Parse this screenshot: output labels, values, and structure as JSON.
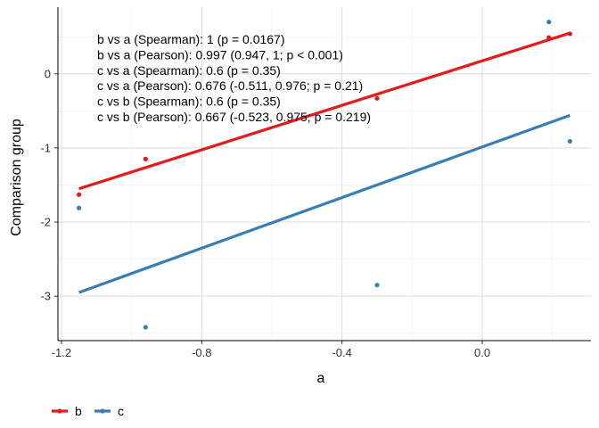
{
  "chart_data": {
    "type": "scatter",
    "xlabel": "a",
    "ylabel": "Comparison group",
    "xlim": [
      -1.21,
      0.31
    ],
    "ylim": [
      -3.6,
      0.9
    ],
    "xticks": [
      -1.2,
      -0.8,
      -0.4,
      0.0
    ],
    "xtick_labels": [
      "-1.2",
      "-0.8",
      "-0.4",
      "0.0"
    ],
    "yticks": [
      -3,
      -2,
      -1,
      0
    ],
    "ytick_labels": [
      "-3",
      "-2",
      "-1",
      "0"
    ],
    "grid": true,
    "legend_position": "bottom-left",
    "series": [
      {
        "name": "b",
        "color": "#e41a1c",
        "points": [
          {
            "x": -1.15,
            "y": -1.63
          },
          {
            "x": -0.96,
            "y": -1.15
          },
          {
            "x": -0.3,
            "y": -0.33
          },
          {
            "x": 0.19,
            "y": 0.49
          },
          {
            "x": 0.25,
            "y": 0.54
          }
        ],
        "fit": {
          "x": [
            -1.15,
            0.25
          ],
          "y": [
            -1.55,
            0.55
          ]
        }
      },
      {
        "name": "c",
        "color": "#377eb8",
        "points": [
          {
            "x": -1.15,
            "y": -1.81
          },
          {
            "x": -0.96,
            "y": -3.42
          },
          {
            "x": -0.3,
            "y": -2.85
          },
          {
            "x": 0.19,
            "y": 0.7
          },
          {
            "x": 0.25,
            "y": -0.91
          }
        ],
        "fit": {
          "x": [
            -1.15,
            0.25
          ],
          "y": [
            -2.95,
            -0.56
          ]
        }
      }
    ],
    "annotations": [
      "b vs a (Spearman): 1 (p = 0.0167)",
      "b vs a (Pearson): 0.997 (0.947, 1; p < 0.001)",
      "c vs a (Spearman): 0.6 (p = 0.35)",
      "c vs a (Pearson): 0.676 (-0.511, 0.976; p = 0.21)",
      "c vs b (Spearman): 0.6 (p = 0.35)",
      "c vs b (Pearson): 0.667 (-0.523, 0.975; p = 0.219)"
    ]
  }
}
